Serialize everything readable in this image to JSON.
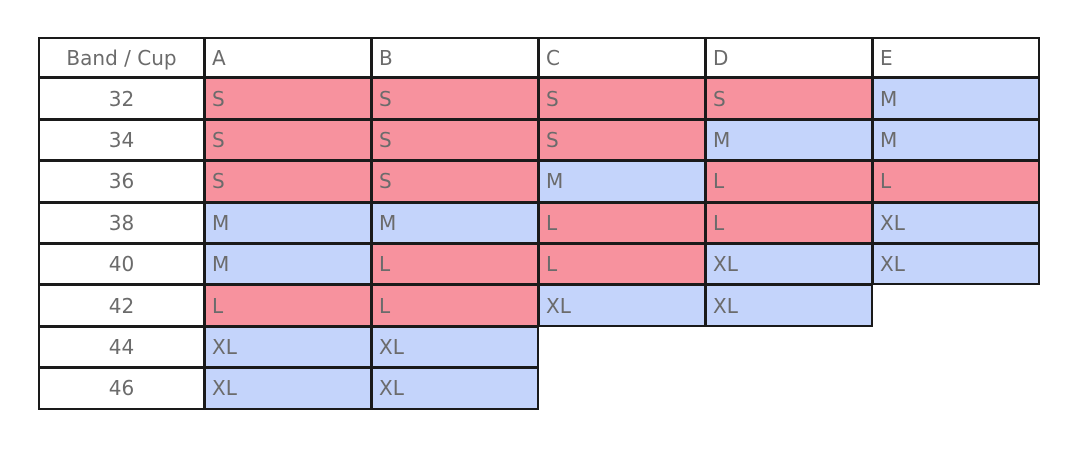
{
  "table": {
    "header": [
      "Band / Cup",
      "A",
      "B",
      "C",
      "D",
      "E"
    ],
    "rows": [
      {
        "band": "32",
        "cells": [
          {
            "size": "S",
            "color": "#f7929e"
          },
          {
            "size": "S",
            "color": "#f7929e"
          },
          {
            "size": "S",
            "color": "#f7929e"
          },
          {
            "size": "S",
            "color": "#f7929e"
          },
          {
            "size": "M",
            "color": "#c4d4fb"
          }
        ]
      },
      {
        "band": "34",
        "cells": [
          {
            "size": "S",
            "color": "#f7929e"
          },
          {
            "size": "S",
            "color": "#f7929e"
          },
          {
            "size": "S",
            "color": "#f7929e"
          },
          {
            "size": "M",
            "color": "#c4d4fb"
          },
          {
            "size": "M",
            "color": "#c4d4fb"
          }
        ]
      },
      {
        "band": "36",
        "cells": [
          {
            "size": "S",
            "color": "#f7929e"
          },
          {
            "size": "S",
            "color": "#f7929e"
          },
          {
            "size": "M",
            "color": "#c4d4fb"
          },
          {
            "size": "L",
            "color": "#f7929e"
          },
          {
            "size": "L",
            "color": "#f7929e"
          }
        ]
      },
      {
        "band": "38",
        "cells": [
          {
            "size": "M",
            "color": "#c4d4fb"
          },
          {
            "size": "M",
            "color": "#c4d4fb"
          },
          {
            "size": "L",
            "color": "#f7929e"
          },
          {
            "size": "L",
            "color": "#f7929e"
          },
          {
            "size": "XL",
            "color": "#c4d4fb"
          }
        ]
      },
      {
        "band": "40",
        "cells": [
          {
            "size": "M",
            "color": "#c4d4fb"
          },
          {
            "size": "L",
            "color": "#f7929e"
          },
          {
            "size": "L",
            "color": "#f7929e"
          },
          {
            "size": "XL",
            "color": "#c4d4fb"
          },
          {
            "size": "XL",
            "color": "#c4d4fb"
          }
        ]
      },
      {
        "band": "42",
        "cells": [
          {
            "size": "L",
            "color": "#f7929e"
          },
          {
            "size": "L",
            "color": "#f7929e"
          },
          {
            "size": "XL",
            "color": "#c4d4fb"
          },
          {
            "size": "XL",
            "color": "#c4d4fb"
          }
        ]
      },
      {
        "band": "44",
        "cells": [
          {
            "size": "XL",
            "color": "#c4d4fb"
          },
          {
            "size": "XL",
            "color": "#c4d4fb"
          }
        ]
      },
      {
        "band": "46",
        "cells": [
          {
            "size": "XL",
            "color": "#c4d4fb"
          },
          {
            "size": "XL",
            "color": "#c4d4fb"
          }
        ]
      }
    ]
  }
}
